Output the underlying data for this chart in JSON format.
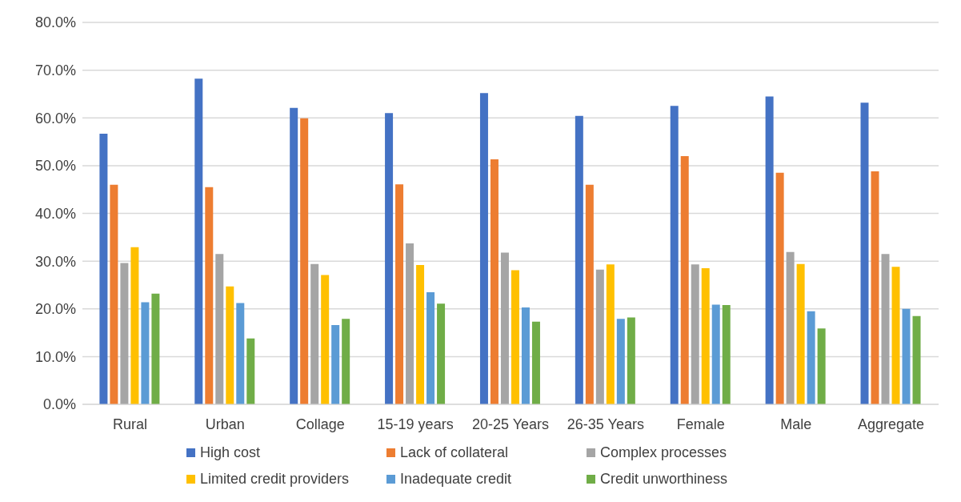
{
  "chart_data": {
    "type": "bar",
    "categories": [
      "Rural",
      "Urban",
      "Collage",
      "15-19 years",
      "20-25 Years",
      "26-35 Years",
      "Female",
      "Male",
      "Aggregate"
    ],
    "series": [
      {
        "name": "High cost",
        "color": "#4472c4",
        "values": [
          56.7,
          68.2,
          62.1,
          61.0,
          65.2,
          60.4,
          62.5,
          64.5,
          63.2
        ]
      },
      {
        "name": "Lack of collateral",
        "color": "#ed7d31",
        "values": [
          46.0,
          45.5,
          59.9,
          46.1,
          51.3,
          46.0,
          52.0,
          48.5,
          48.8
        ]
      },
      {
        "name": "Complex processes",
        "color": "#a5a5a5",
        "values": [
          29.6,
          31.5,
          29.4,
          33.7,
          31.8,
          28.2,
          29.3,
          31.9,
          31.5
        ]
      },
      {
        "name": "Limited credit providers",
        "color": "#ffc000",
        "values": [
          32.9,
          24.7,
          27.1,
          29.2,
          28.1,
          29.3,
          28.5,
          29.4,
          28.8
        ]
      },
      {
        "name": "Inadequate credit",
        "color": "#5b9bd5",
        "values": [
          21.4,
          21.2,
          16.6,
          23.5,
          20.3,
          17.9,
          20.9,
          19.5,
          20.0
        ]
      },
      {
        "name": "Credit unworthiness",
        "color": "#70ad47",
        "values": [
          23.2,
          13.8,
          17.9,
          21.1,
          17.3,
          18.2,
          20.8,
          15.9,
          18.5
        ]
      }
    ],
    "ylim": [
      0,
      80
    ],
    "yticks": [
      {
        "value": 0,
        "label": "0.0%"
      },
      {
        "value": 10,
        "label": "10.0%"
      },
      {
        "value": 20,
        "label": "20.0%"
      },
      {
        "value": 30,
        "label": "30.0%"
      },
      {
        "value": 40,
        "label": "40.0%"
      },
      {
        "value": 50,
        "label": "50.0%"
      },
      {
        "value": 60,
        "label": "60.0%"
      },
      {
        "value": 70,
        "label": "70.0%"
      },
      {
        "value": 80,
        "label": "80.0%"
      }
    ],
    "grid": "y",
    "legend": "bottom"
  }
}
